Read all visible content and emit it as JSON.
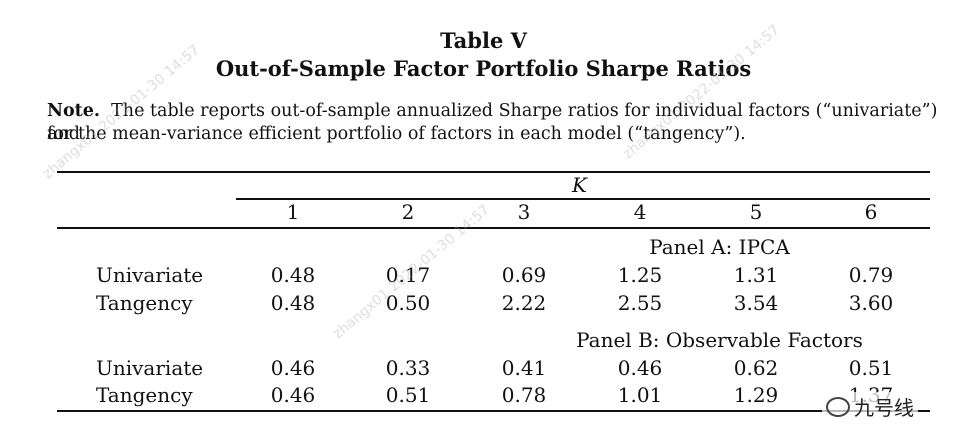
{
  "title": {
    "line1": "Table V",
    "line2": "Out-of-Sample Factor Portfolio Sharpe Ratios"
  },
  "note": {
    "label": "Note.",
    "line1": "The table reports out-of-sample annualized Sharpe ratios for individual factors (“univariate”) and",
    "line2": "for the mean-variance efficient portfolio of factors in each model (“tangency”)."
  },
  "table": {
    "k_header": "K",
    "columns": [
      "1",
      "2",
      "3",
      "4",
      "5",
      "6"
    ],
    "panels": [
      {
        "name": "Panel A: IPCA",
        "rows": [
          {
            "label": "Univariate",
            "values": [
              "0.48",
              "0.17",
              "0.69",
              "1.25",
              "1.31",
              "0.79"
            ]
          },
          {
            "label": "Tangency",
            "values": [
              "0.48",
              "0.50",
              "2.22",
              "2.55",
              "3.54",
              "3.60"
            ]
          }
        ]
      },
      {
        "name": "Panel B: Observable Factors",
        "rows": [
          {
            "label": "Univariate",
            "values": [
              "0.46",
              "0.33",
              "0.41",
              "0.46",
              "0.62",
              "0.51"
            ]
          },
          {
            "label": "Tangency",
            "values": [
              "0.46",
              "0.51",
              "0.78",
              "1.01",
              "1.29",
              "1.37"
            ]
          }
        ]
      }
    ]
  },
  "watermark": {
    "text": "zhangx01 2022-01-30 14:57"
  },
  "brand": {
    "text": "九号线"
  }
}
